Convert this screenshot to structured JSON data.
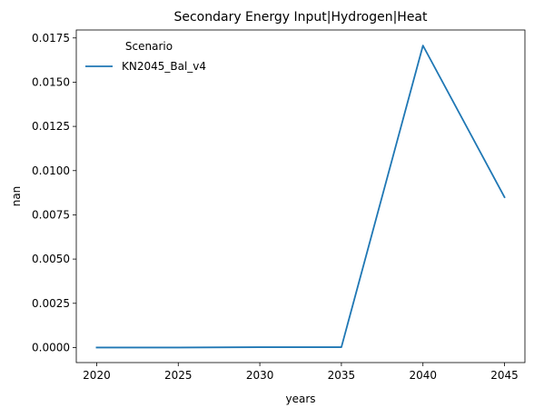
{
  "chart_data": {
    "type": "line",
    "title": "Secondary Energy Input|Hydrogen|Heat",
    "xlabel": "years",
    "ylabel": "nan",
    "x": [
      2020,
      2025,
      2030,
      2035,
      2040,
      2045
    ],
    "x_ticks": [
      "2020",
      "2025",
      "2030",
      "2035",
      "2040",
      "2045"
    ],
    "xlim": [
      2018.75,
      2046.25
    ],
    "y_ticks": [
      "0.0000",
      "0.0025",
      "0.0050",
      "0.0075",
      "0.0100",
      "0.0125",
      "0.0150",
      "0.0175"
    ],
    "ylim": [
      -0.00085,
      0.01795
    ],
    "series": [
      {
        "name": "KN2045_Bal_v4",
        "color": "#1f77b4",
        "values": [
          0.0,
          0.0,
          2e-05,
          2e-05,
          0.01707,
          0.0085
        ]
      }
    ],
    "legend": {
      "title": "Scenario",
      "placement": "top-left",
      "frame": false
    },
    "grid": false
  }
}
